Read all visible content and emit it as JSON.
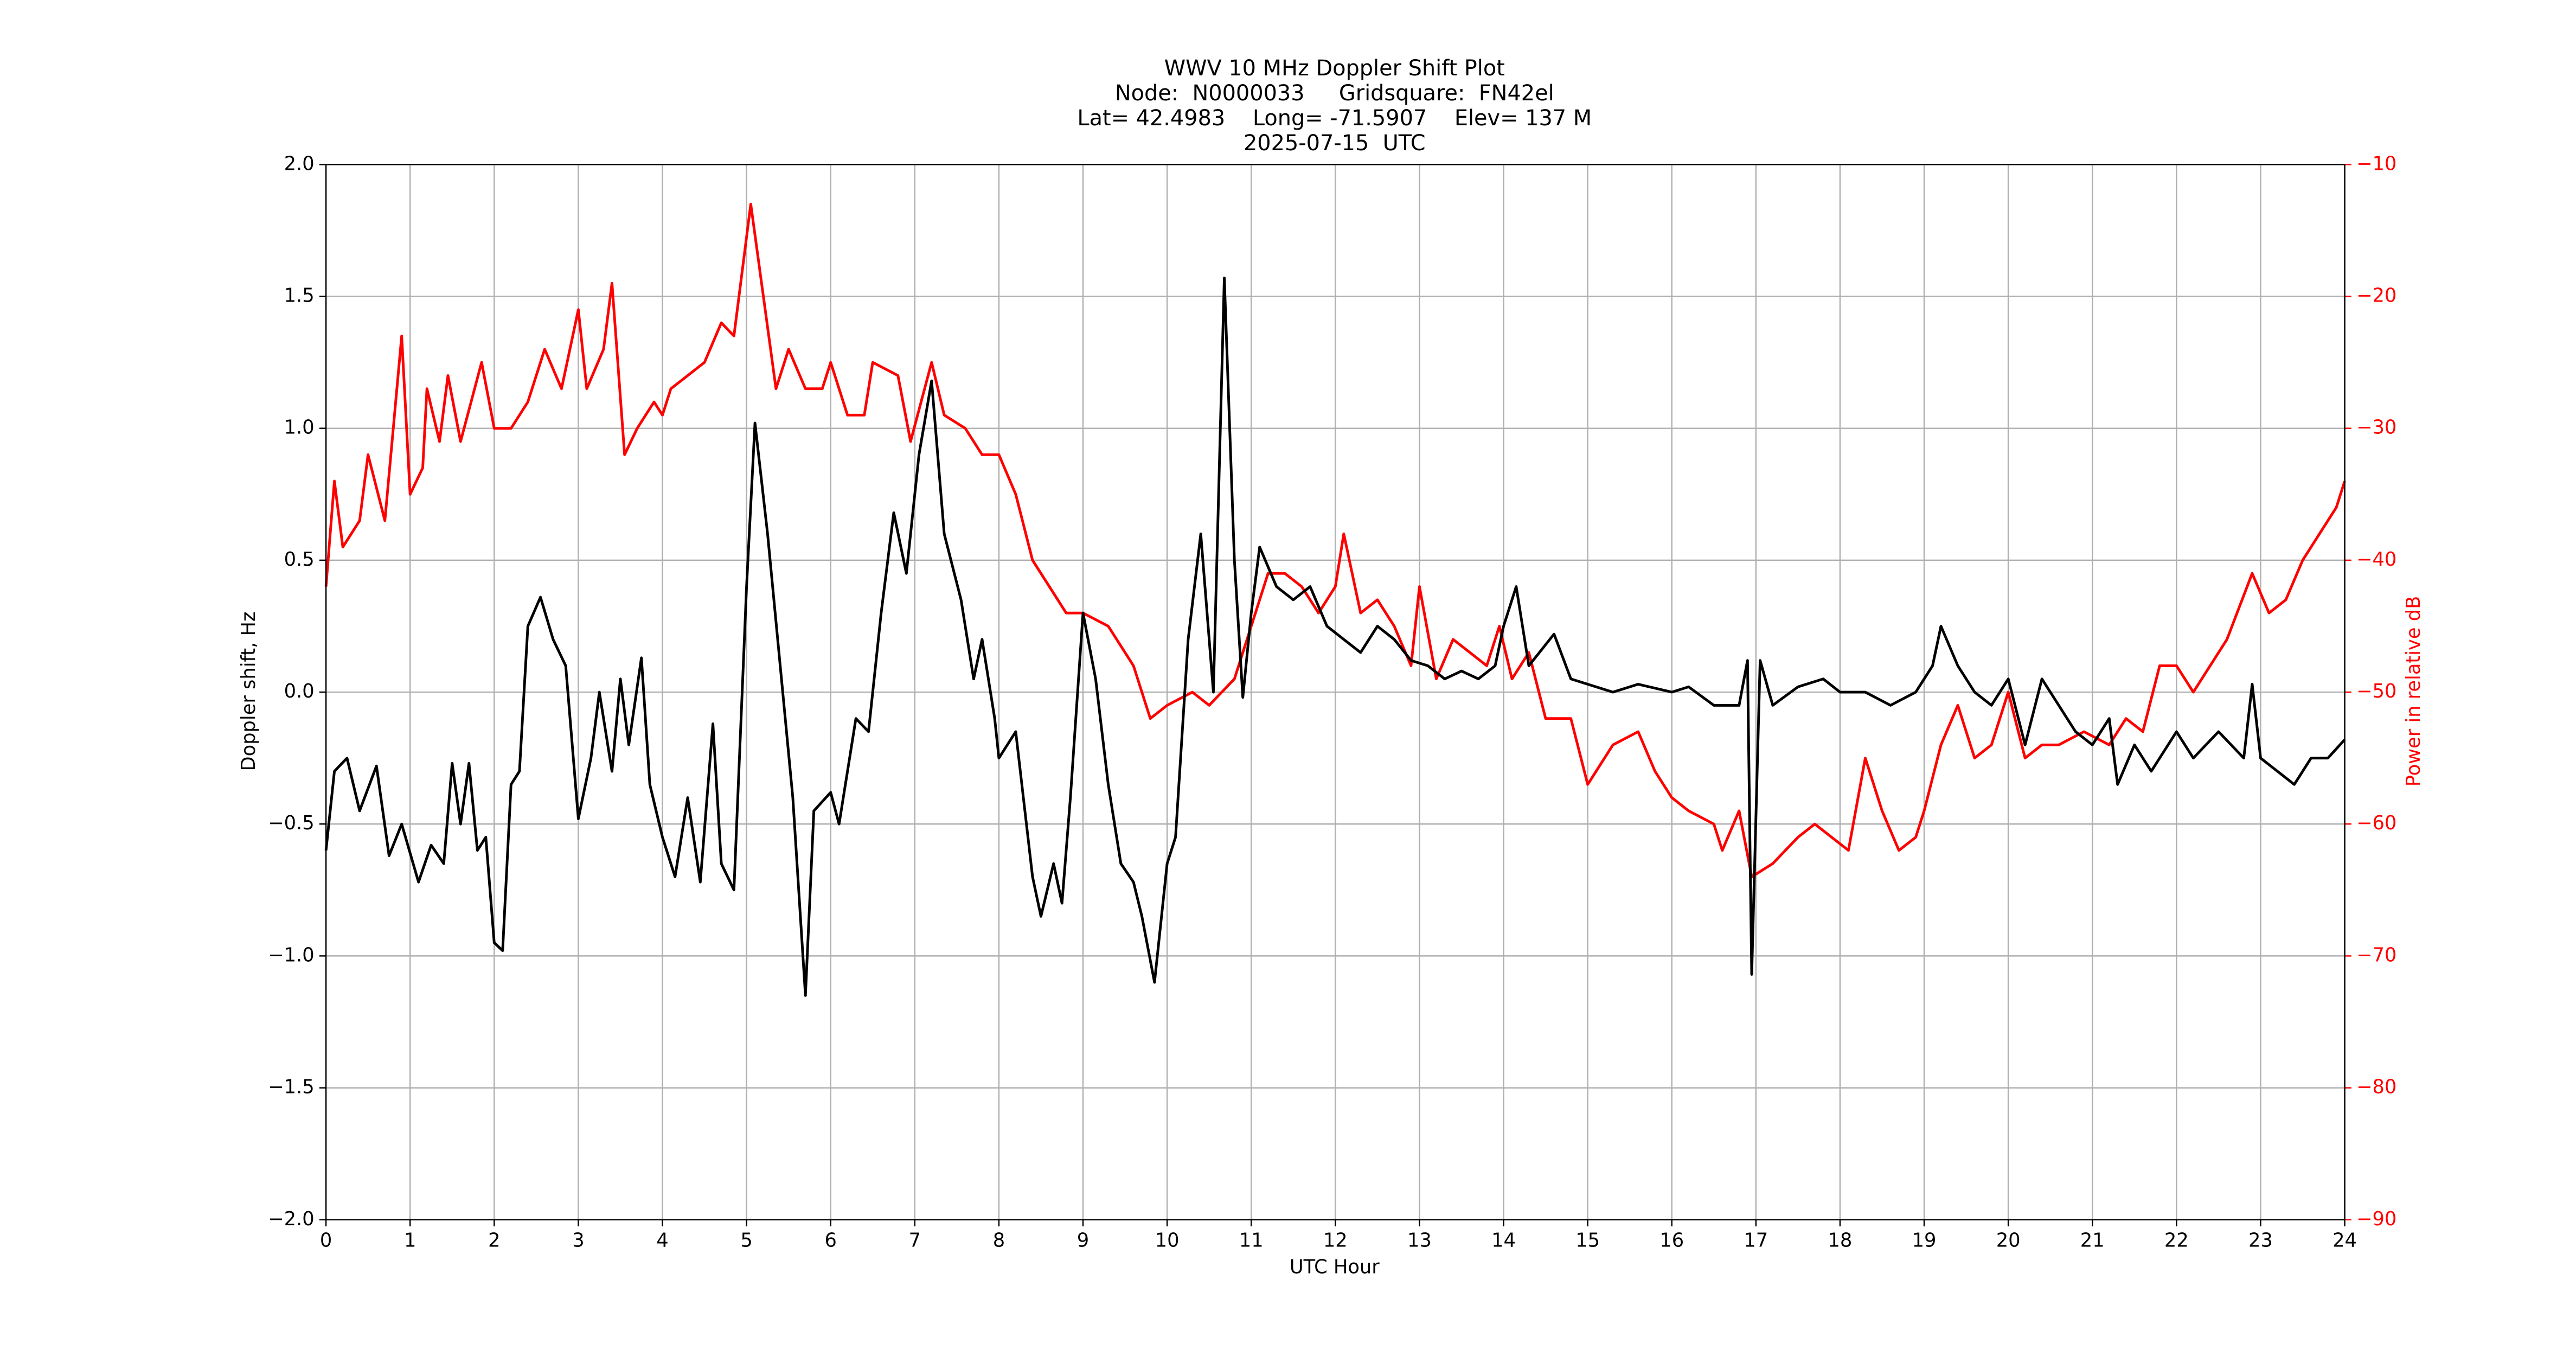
{
  "chart_data": {
    "type": "line",
    "title": "WWV 10 MHz Doppler Shift Plot",
    "subtitle": [
      "Node:  N0000033     Gridsquare:  FN42el",
      "Lat= 42.4983    Long= -71.5907    Elev= 137 M",
      "2025-07-15  UTC"
    ],
    "xlabel": "UTC Hour",
    "ylabel": "Doppler shift, Hz",
    "y2label": "Power in relative dB",
    "xlim": [
      0,
      24
    ],
    "xticks": [
      0,
      1,
      2,
      3,
      4,
      5,
      6,
      7,
      8,
      9,
      10,
      11,
      12,
      13,
      14,
      15,
      16,
      17,
      18,
      19,
      20,
      21,
      22,
      23,
      24
    ],
    "ylim": [
      -2.0,
      2.0
    ],
    "yticks": [
      {
        "value": -2.0,
        "label": "−2.0"
      },
      {
        "value": -1.5,
        "label": "−1.5"
      },
      {
        "value": -1.0,
        "label": "−1.0"
      },
      {
        "value": -0.5,
        "label": "−0.5"
      },
      {
        "value": 0.0,
        "label": "0.0"
      },
      {
        "value": 0.5,
        "label": "0.5"
      },
      {
        "value": 1.0,
        "label": "1.0"
      },
      {
        "value": 1.5,
        "label": "1.5"
      },
      {
        "value": 2.0,
        "label": "2.0"
      }
    ],
    "y2lim": [
      -90,
      -10
    ],
    "y2ticks": [
      {
        "value": -90,
        "label": "−90"
      },
      {
        "value": -80,
        "label": "−80"
      },
      {
        "value": -70,
        "label": "−70"
      },
      {
        "value": -60,
        "label": "−60"
      },
      {
        "value": -50,
        "label": "−50"
      },
      {
        "value": -40,
        "label": "−40"
      },
      {
        "value": -30,
        "label": "−30"
      },
      {
        "value": -20,
        "label": "−20"
      },
      {
        "value": -10,
        "label": "−10"
      }
    ],
    "y2color": "#ff0000",
    "grid": true,
    "series": [
      {
        "color": "#ff0000",
        "axis": "y2",
        "x": [
          0,
          0.1,
          0.2,
          0.4,
          0.5,
          0.7,
          0.8,
          0.9,
          1.0,
          1.15,
          1.2,
          1.35,
          1.45,
          1.6,
          1.85,
          2.0,
          2.2,
          2.4,
          2.6,
          2.8,
          3.0,
          3.1,
          3.3,
          3.4,
          3.55,
          3.7,
          3.9,
          4.0,
          4.1,
          4.3,
          4.5,
          4.7,
          4.85,
          5.05,
          5.2,
          5.35,
          5.5,
          5.7,
          5.9,
          6.0,
          6.2,
          6.4,
          6.5,
          6.8,
          6.95,
          7.2,
          7.35,
          7.6,
          7.8,
          8.0,
          8.2,
          8.4,
          8.6,
          8.8,
          9.0,
          9.3,
          9.6,
          9.8,
          10.0,
          10.3,
          10.5,
          10.8,
          11.0,
          11.2,
          11.4,
          11.6,
          11.8,
          12.0,
          12.1,
          12.3,
          12.5,
          12.7,
          12.9,
          13.0,
          13.2,
          13.4,
          13.6,
          13.8,
          13.95,
          14.1,
          14.3,
          14.5,
          14.8,
          15.0,
          15.3,
          15.6,
          15.8,
          16.0,
          16.2,
          16.5,
          16.6,
          16.8,
          16.95,
          17.2,
          17.5,
          17.7,
          17.9,
          18.1,
          18.3,
          18.5,
          18.7,
          18.9,
          19.0,
          19.2,
          19.4,
          19.6,
          19.8,
          20.0,
          20.2,
          20.4,
          20.6,
          20.9,
          21.2,
          21.4,
          21.6,
          21.8,
          22.0,
          22.2,
          22.4,
          22.6,
          22.9,
          23.1,
          23.3,
          23.5,
          23.7,
          23.9,
          24.0
        ],
        "values": [
          -42,
          -34,
          -39,
          -37,
          -32,
          -37,
          -30,
          -23,
          -35,
          -33,
          -27,
          -31,
          -26,
          -31,
          -25,
          -30,
          -30,
          -28,
          -24,
          -27,
          -21,
          -27,
          -24,
          -19,
          -32,
          -30,
          -28,
          -29,
          -27,
          -26,
          -25,
          -22,
          -23,
          -13,
          -20,
          -27,
          -24,
          -27,
          -27,
          -25,
          -29,
          -29,
          -25,
          -26,
          -31,
          -25,
          -29,
          -30,
          -32,
          -32,
          -35,
          -40,
          -42,
          -44,
          -44,
          -45,
          -48,
          -52,
          -51,
          -50,
          -51,
          -49,
          -45,
          -41,
          -41,
          -42,
          -44,
          -42,
          -38,
          -44,
          -43,
          -45,
          -48,
          -42,
          -49,
          -46,
          -47,
          -48,
          -45,
          -49,
          -47,
          -52,
          -52,
          -57,
          -54,
          -53,
          -56,
          -58,
          -59,
          -60,
          -62,
          -59,
          -64,
          -63,
          -61,
          -60,
          -61,
          -62,
          -55,
          -59,
          -62,
          -61,
          -59,
          -54,
          -51,
          -55,
          -54,
          -50,
          -55,
          -54,
          -54,
          -53,
          -54,
          -52,
          -53,
          -48,
          -48,
          -50,
          -48,
          -46,
          -41,
          -44,
          -43,
          -40,
          -38,
          -36,
          -34
        ]
      },
      {
        "color": "#000000",
        "x": [
          0,
          0.1,
          0.25,
          0.4,
          0.6,
          0.75,
          0.9,
          1.1,
          1.25,
          1.4,
          1.5,
          1.6,
          1.7,
          1.8,
          1.9,
          2.0,
          2.1,
          2.2,
          2.3,
          2.4,
          2.55,
          2.7,
          2.85,
          3.0,
          3.15,
          3.25,
          3.4,
          3.5,
          3.6,
          3.75,
          3.85,
          4.0,
          4.15,
          4.3,
          4.45,
          4.6,
          4.7,
          4.85,
          5.0,
          5.1,
          5.25,
          5.4,
          5.55,
          5.7,
          5.8,
          6.0,
          6.1,
          6.3,
          6.45,
          6.6,
          6.75,
          6.9,
          7.05,
          7.2,
          7.35,
          7.55,
          7.7,
          7.8,
          7.95,
          8.0,
          8.2,
          8.4,
          8.5,
          8.65,
          8.75,
          8.85,
          9.0,
          9.15,
          9.3,
          9.45,
          9.6,
          9.7,
          9.85,
          10.0,
          10.1,
          10.25,
          10.4,
          10.55,
          10.68,
          10.8,
          10.9,
          11.0,
          11.1,
          11.3,
          11.5,
          11.7,
          11.9,
          12.1,
          12.3,
          12.5,
          12.7,
          12.9,
          13.1,
          13.3,
          13.5,
          13.7,
          13.9,
          14.0,
          14.15,
          14.3,
          14.6,
          14.8,
          15.0,
          15.3,
          15.6,
          16.0,
          16.2,
          16.5,
          16.8,
          16.9,
          16.95,
          17.05,
          17.2,
          17.5,
          17.8,
          18.0,
          18.3,
          18.6,
          18.9,
          19.1,
          19.2,
          19.4,
          19.6,
          19.8,
          20.0,
          20.2,
          20.4,
          20.6,
          20.8,
          21.0,
          21.2,
          21.3,
          21.5,
          21.7,
          21.9,
          22.0,
          22.2,
          22.5,
          22.8,
          22.9,
          23.0,
          23.2,
          23.4,
          23.6,
          23.8,
          24.0
        ],
        "values": [
          -0.6,
          -0.3,
          -0.25,
          -0.45,
          -0.28,
          -0.62,
          -0.5,
          -0.72,
          -0.58,
          -0.65,
          -0.27,
          -0.5,
          -0.27,
          -0.6,
          -0.55,
          -0.95,
          -0.98,
          -0.35,
          -0.3,
          0.25,
          0.36,
          0.2,
          0.1,
          -0.48,
          -0.25,
          0.0,
          -0.3,
          0.05,
          -0.2,
          0.13,
          -0.35,
          -0.55,
          -0.7,
          -0.4,
          -0.72,
          -0.12,
          -0.65,
          -0.75,
          0.4,
          1.02,
          0.6,
          0.1,
          -0.4,
          -1.15,
          -0.45,
          -0.38,
          -0.5,
          -0.1,
          -0.15,
          0.3,
          0.68,
          0.45,
          0.9,
          1.18,
          0.6,
          0.35,
          0.05,
          0.2,
          -0.1,
          -0.25,
          -0.15,
          -0.7,
          -0.85,
          -0.65,
          -0.8,
          -0.4,
          0.3,
          0.05,
          -0.35,
          -0.65,
          -0.72,
          -0.85,
          -1.1,
          -0.65,
          -0.55,
          0.2,
          0.6,
          0.0,
          1.57,
          0.5,
          -0.02,
          0.3,
          0.55,
          0.4,
          0.35,
          0.4,
          0.25,
          0.2,
          0.15,
          0.25,
          0.2,
          0.12,
          0.1,
          0.05,
          0.08,
          0.05,
          0.1,
          0.25,
          0.4,
          0.1,
          0.22,
          0.05,
          0.03,
          0.0,
          0.03,
          0.0,
          0.02,
          -0.05,
          -0.05,
          0.12,
          -1.07,
          0.12,
          -0.05,
          0.02,
          0.05,
          0.0,
          0.0,
          -0.05,
          0.0,
          0.1,
          0.25,
          0.1,
          0.0,
          -0.05,
          0.05,
          -0.2,
          0.05,
          -0.05,
          -0.15,
          -0.2,
          -0.1,
          -0.35,
          -0.2,
          -0.3,
          -0.2,
          -0.15,
          -0.25,
          -0.15,
          -0.25,
          0.03,
          -0.25,
          -0.3,
          -0.35,
          -0.25,
          -0.25,
          -0.18
        ]
      }
    ]
  }
}
